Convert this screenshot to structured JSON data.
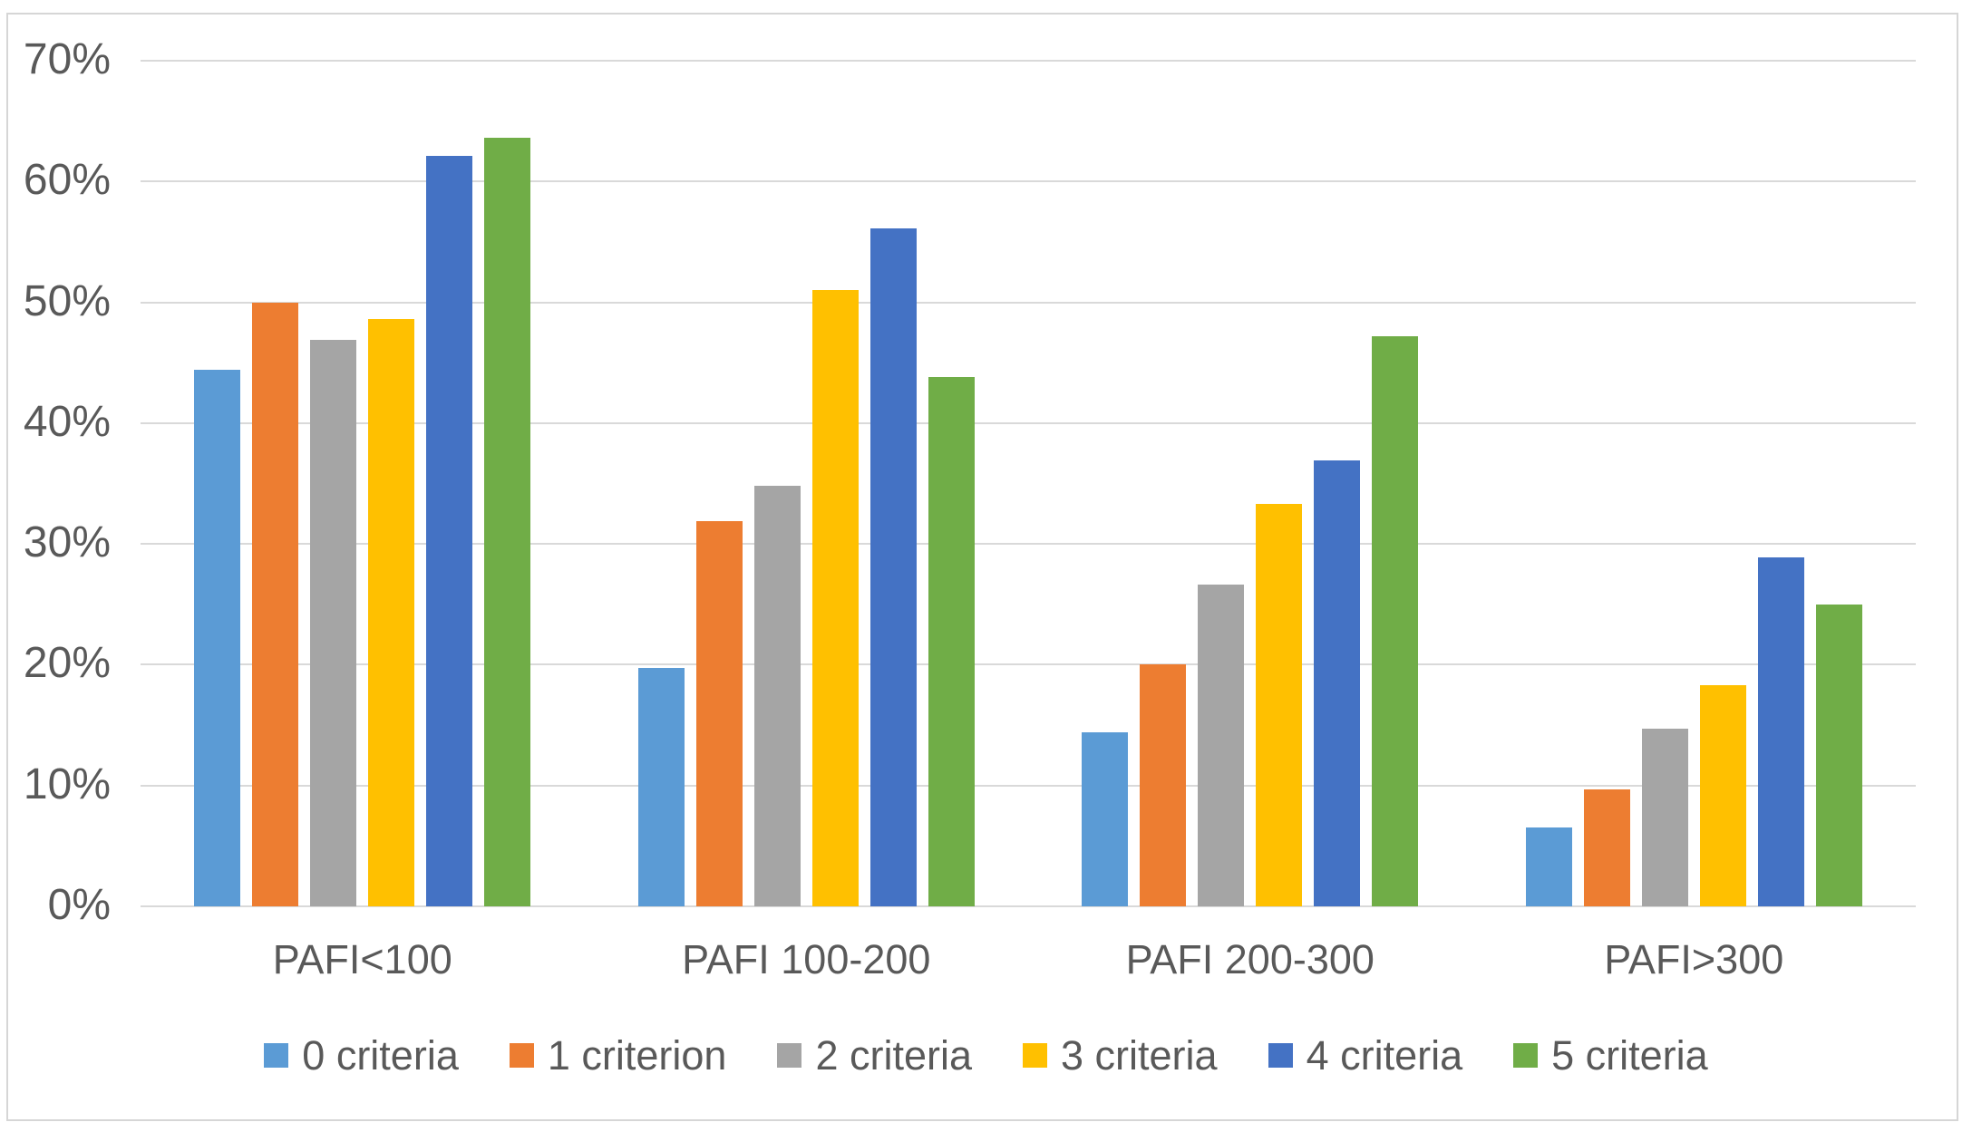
{
  "chart_data": {
    "type": "bar",
    "title": "",
    "categories": [
      "PAFI<100",
      "PAFI 100-200",
      "PAFI 200-300",
      "PAFI>300"
    ],
    "series": [
      {
        "name": "0 criteria",
        "color": "#5B9BD5",
        "values": [
          44.4,
          19.7,
          14.4,
          6.5
        ]
      },
      {
        "name": "1 criterion",
        "color": "#ED7D31",
        "values": [
          50.0,
          31.9,
          20.0,
          9.7
        ]
      },
      {
        "name": "2 criteria",
        "color": "#A5A5A5",
        "values": [
          46.9,
          34.8,
          26.6,
          14.7
        ]
      },
      {
        "name": "3 criteria",
        "color": "#FFC000",
        "values": [
          48.6,
          51.0,
          33.3,
          18.3
        ]
      },
      {
        "name": "4 criteria",
        "color": "#4472C4",
        "values": [
          62.1,
          56.1,
          36.9,
          28.9
        ]
      },
      {
        "name": "5 criteria",
        "color": "#70AD47",
        "values": [
          63.6,
          43.8,
          47.2,
          25.0
        ]
      }
    ],
    "ylim": [
      0,
      70
    ],
    "ytick_step": 10,
    "ytick_labels": [
      "0%",
      "10%",
      "20%",
      "30%",
      "40%",
      "50%",
      "60%",
      "70%"
    ],
    "grid": true,
    "legend_position": "bottom"
  },
  "styles": {
    "gridline_color": "#d9d9d9",
    "axis_text_color": "#595959",
    "border_color": "#d6d6d6",
    "background": "#ffffff"
  }
}
